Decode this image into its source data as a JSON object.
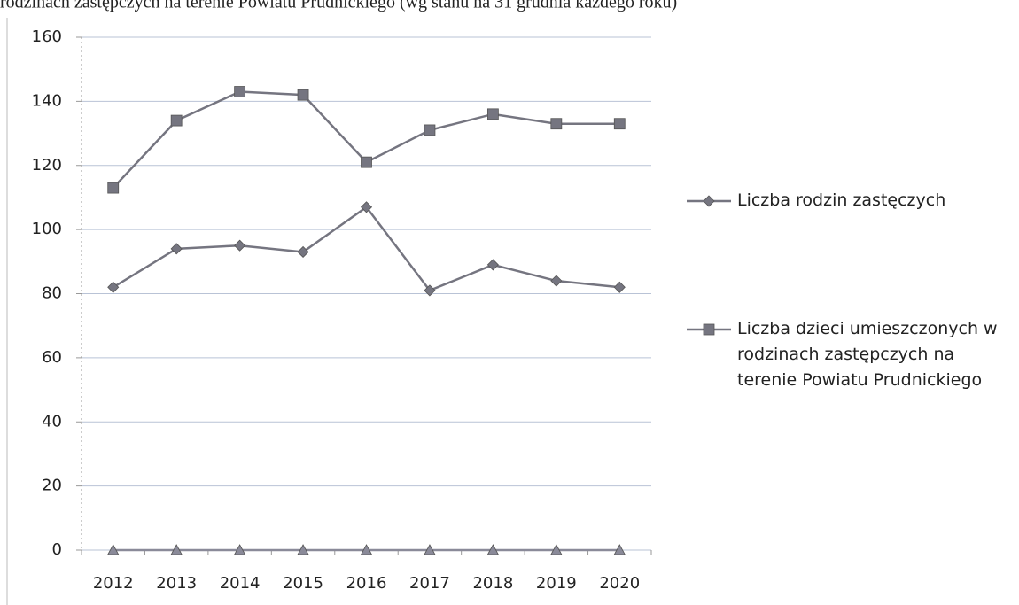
{
  "chart_data": {
    "type": "line",
    "title": "rodzinach zastępczych na terenie Powiatu Prudnickiego (wg stanu na 31 grudnia każdego roku)",
    "categories": [
      "2012",
      "2013",
      "2014",
      "2015",
      "2016",
      "2017",
      "2018",
      "2019",
      "2020"
    ],
    "series": [
      {
        "name": "Liczba rodzin zastęczych",
        "color": "#757580",
        "marker": "diamond",
        "values": [
          82,
          94,
          95,
          93,
          107,
          81,
          89,
          84,
          82
        ]
      },
      {
        "name": "Liczba dzieci umieszczonych w rodzinach zastępczych na terenie Powiatu Prudnickiego",
        "color": "#757580",
        "marker": "square",
        "values": [
          113,
          134,
          143,
          142,
          121,
          131,
          136,
          133,
          133
        ]
      },
      {
        "color": "#8a8a99",
        "marker": "triangle",
        "values": [
          0,
          0,
          0,
          0,
          0,
          0,
          0,
          0,
          0
        ]
      }
    ],
    "ylim": [
      0,
      160
    ],
    "yticks": [
      0,
      20,
      40,
      60,
      80,
      100,
      120,
      140,
      160
    ],
    "grid": true
  }
}
